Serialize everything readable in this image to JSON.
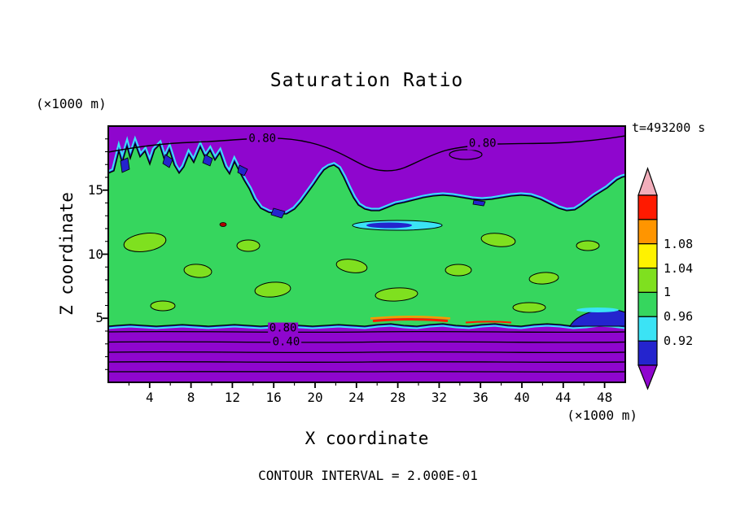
{
  "chart_data": {
    "type": "filled_contour",
    "title": "Saturation Ratio",
    "time_label": "t=493200 s",
    "xlabel": "X coordinate",
    "ylabel": "Z coordinate",
    "x_units": "(×1000 m)",
    "y_units": "(×1000 m)",
    "contour_interval_label": "CONTOUR INTERVAL = 2.000E-01",
    "contour_interval": 0.2,
    "xlim": [
      0,
      50
    ],
    "ylim": [
      0,
      20
    ],
    "x_ticks": [
      4,
      8,
      12,
      16,
      20,
      24,
      28,
      32,
      36,
      40,
      44,
      48
    ],
    "y_ticks": [
      5,
      10,
      15
    ],
    "colorbar": {
      "tick_labels": [
        "1.08",
        "1.04",
        "1",
        "0.96",
        "0.92"
      ],
      "labeled_levels": [
        1.08,
        1.04,
        1.0,
        0.96,
        0.92
      ],
      "band_colors_top_to_bottom": [
        "#FF1A00",
        "#FF9500",
        "#FFF200",
        "#7FE01F",
        "#36D65E",
        "#3BE3F5",
        "#2424CE"
      ],
      "over_arrow_color": "#F2AEBB",
      "under_arrow_color": "#8F06CE"
    },
    "palette": {
      "purple": "#8F06CE",
      "blue": "#2424CE",
      "cyan": "#3BE3F5",
      "green": "#36D65E",
      "yellowgreen": "#7FE01F",
      "yellow": "#FFF200",
      "orange": "#FF9500",
      "red": "#FF1A00",
      "pink": "#F2AEBB",
      "darkred": "#B00000"
    },
    "line_contour_levels_labeled": [
      0.8,
      0.4
    ],
    "annotations": [
      {
        "text": "0.80",
        "x": 14.9,
        "z": 19.0
      },
      {
        "text": "0.80",
        "x": 36.2,
        "z": 18.6
      },
      {
        "text": "0.80",
        "x": 16.9,
        "z": 4.2
      },
      {
        "text": "0.40",
        "x": 17.2,
        "z": 3.1
      }
    ],
    "field_description": {
      "saturated_region": "S near 1 (green) spanning z of about 5 to 15-17 across the whole x domain",
      "undersaturated_regions": "purple (S below 0.9) below z of about 5 and above z of about 15-17, with a deep dry bulge near x 16-31 at the top",
      "detail_features": "cyan/blue fringes along the upper cloud boundary, thin orange/red supersaturation streaks near z of about 5 around x 25-33, horizontal 0.8/0.4 line contours in the lower purple layer"
    }
  }
}
